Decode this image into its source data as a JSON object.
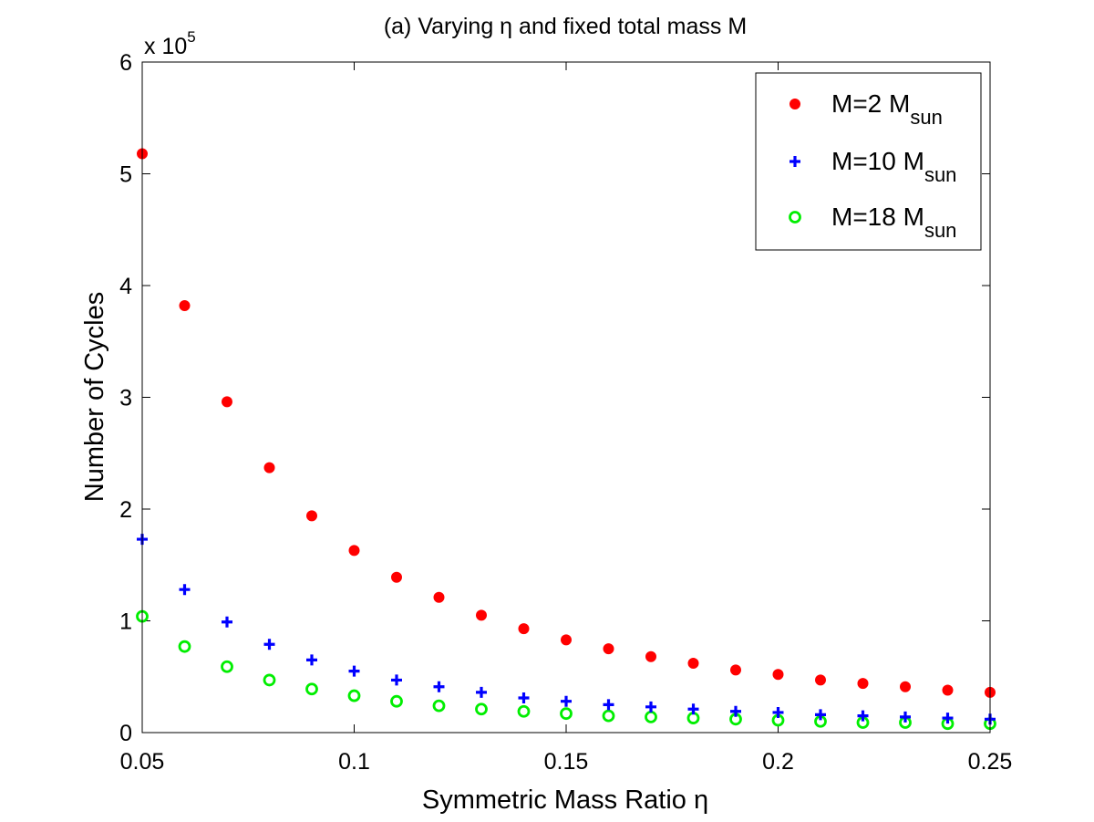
{
  "chart_data": {
    "type": "scatter",
    "title": "(a) Varying η and fixed total mass M",
    "xlabel": "Symmetric Mass Ratio η",
    "ylabel": "Number of Cycles",
    "y_multiplier_base": "x 10",
    "y_multiplier_exp": "5",
    "xlim": [
      0.05,
      0.25
    ],
    "ylim": [
      0,
      6
    ],
    "xticks": [
      0.05,
      0.1,
      0.15,
      0.2,
      0.25
    ],
    "xtick_labels": [
      "0.05",
      "0.1",
      "0.15",
      "0.2",
      "0.25"
    ],
    "yticks": [
      0,
      1,
      2,
      3,
      4,
      5,
      6
    ],
    "ytick_labels": [
      "0",
      "1",
      "2",
      "3",
      "4",
      "5",
      "6"
    ],
    "x": [
      0.05,
      0.06,
      0.07,
      0.08,
      0.09,
      0.1,
      0.11,
      0.12,
      0.13,
      0.14,
      0.15,
      0.16,
      0.17,
      0.18,
      0.19,
      0.2,
      0.21,
      0.22,
      0.23,
      0.24,
      0.25
    ],
    "legend_position": "top-right",
    "series": [
      {
        "name": "M=2 M",
        "subscript": "sun",
        "marker": "dot",
        "color": "#ff0000",
        "values": [
          5.18,
          3.82,
          2.96,
          2.37,
          1.94,
          1.63,
          1.39,
          1.21,
          1.05,
          0.93,
          0.83,
          0.75,
          0.68,
          0.62,
          0.56,
          0.52,
          0.47,
          0.44,
          0.41,
          0.38,
          0.36
        ]
      },
      {
        "name": "M=10 M",
        "subscript": "sun",
        "marker": "plus",
        "color": "#0000ff",
        "values": [
          1.73,
          1.28,
          0.99,
          0.79,
          0.65,
          0.55,
          0.47,
          0.41,
          0.36,
          0.31,
          0.28,
          0.25,
          0.23,
          0.21,
          0.19,
          0.18,
          0.16,
          0.15,
          0.14,
          0.13,
          0.12
        ]
      },
      {
        "name": "M=18 M",
        "subscript": "sun",
        "marker": "circle",
        "color": "#00ee00",
        "values": [
          1.04,
          0.77,
          0.59,
          0.47,
          0.39,
          0.33,
          0.28,
          0.24,
          0.21,
          0.19,
          0.17,
          0.15,
          0.14,
          0.13,
          0.12,
          0.11,
          0.1,
          0.09,
          0.09,
          0.08,
          0.08
        ]
      }
    ]
  }
}
